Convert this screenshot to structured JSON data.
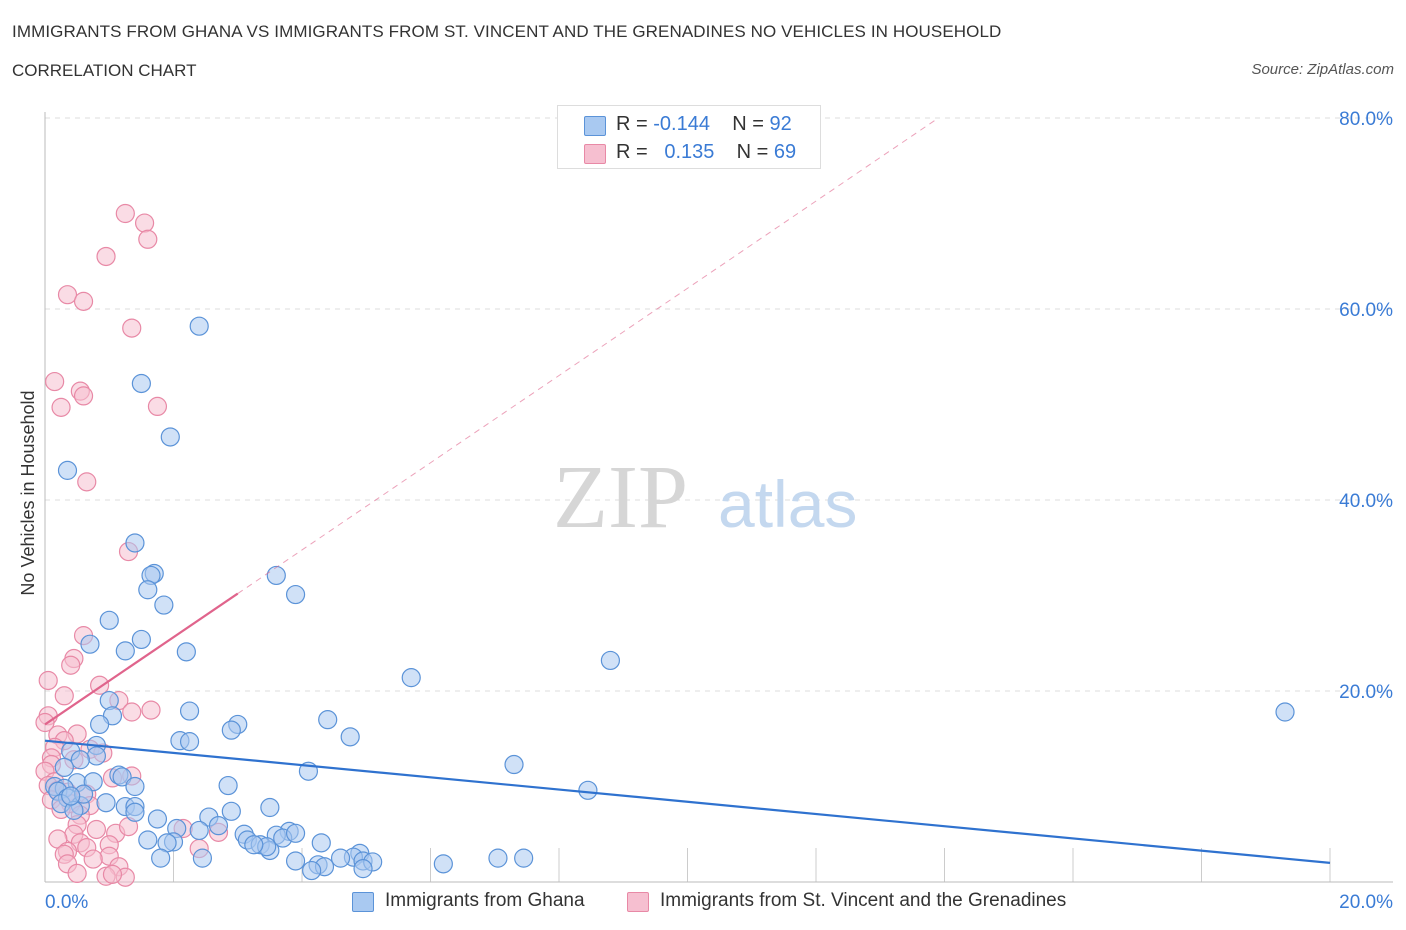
{
  "header": {
    "title": "IMMIGRANTS FROM GHANA VS IMMIGRANTS FROM ST. VINCENT AND THE GRENADINES NO VEHICLES IN HOUSEHOLD",
    "subtitle": "CORRELATION CHART",
    "source": "Source: ZipAtlas.com"
  },
  "legend": {
    "r_label": "R =",
    "n_label": "N =",
    "series1": {
      "r": "-0.144",
      "n": "92"
    },
    "series2": {
      "r": "0.135",
      "n": "69"
    }
  },
  "watermark": {
    "zip": "ZIP",
    "atlas": "atlas"
  },
  "colors": {
    "ghana_fill": "#a9c9f1",
    "ghana_stroke": "#5b93d8",
    "ghana_line": "#2f72cf",
    "svg_fill": "#f6bfd0",
    "svg_stroke": "#e889a6",
    "svg_line": "#e0648c",
    "tick_color": "#3a7bd5",
    "grid": "#dddddd"
  },
  "chart_data": {
    "type": "scatter",
    "title": "IMMIGRANTS FROM GHANA VS IMMIGRANTS FROM ST. VINCENT AND THE GRENADINES NO VEHICLES IN HOUSEHOLD",
    "xlabel": "",
    "ylabel": "No Vehicles in Household",
    "xlim": [
      0,
      20
    ],
    "ylim": [
      0,
      80
    ],
    "x_tick_labels": [
      "0.0%",
      "20.0%"
    ],
    "y_ticks": [
      20,
      40,
      60,
      80
    ],
    "y_tick_labels": [
      "20.0%",
      "40.0%",
      "60.0%",
      "80.0%"
    ],
    "grid": true,
    "legend_position": "top-center",
    "series": [
      {
        "name": "Immigrants from Ghana",
        "R": -0.144,
        "N": 92,
        "trend": {
          "x": [
            0,
            20
          ],
          "y": [
            14.8,
            2.0
          ]
        },
        "points": [
          [
            2.4,
            58.2
          ],
          [
            1.5,
            52.2
          ],
          [
            1.95,
            46.6
          ],
          [
            0.35,
            43.1
          ],
          [
            1.4,
            35.5
          ],
          [
            1.7,
            32.3
          ],
          [
            1.65,
            32.1
          ],
          [
            3.6,
            32.1
          ],
          [
            1.6,
            30.6
          ],
          [
            1.85,
            29.0
          ],
          [
            3.9,
            30.1
          ],
          [
            1.0,
            27.4
          ],
          [
            0.7,
            24.9
          ],
          [
            1.5,
            25.4
          ],
          [
            2.2,
            24.1
          ],
          [
            1.25,
            24.2
          ],
          [
            8.8,
            23.2
          ],
          [
            5.7,
            21.4
          ],
          [
            1.0,
            19.0
          ],
          [
            2.25,
            17.9
          ],
          [
            19.3,
            17.8
          ],
          [
            1.05,
            17.4
          ],
          [
            4.4,
            17.0
          ],
          [
            0.85,
            16.5
          ],
          [
            3.0,
            16.5
          ],
          [
            2.9,
            15.9
          ],
          [
            4.75,
            15.2
          ],
          [
            2.1,
            14.8
          ],
          [
            2.25,
            14.7
          ],
          [
            0.8,
            14.3
          ],
          [
            0.4,
            13.7
          ],
          [
            0.8,
            13.2
          ],
          [
            0.55,
            12.8
          ],
          [
            0.3,
            12.0
          ],
          [
            7.3,
            12.3
          ],
          [
            4.1,
            11.6
          ],
          [
            1.15,
            11.2
          ],
          [
            1.2,
            11.0
          ],
          [
            0.5,
            10.4
          ],
          [
            0.75,
            10.5
          ],
          [
            1.4,
            10.0
          ],
          [
            2.85,
            10.1
          ],
          [
            0.15,
            10.0
          ],
          [
            0.3,
            9.8
          ],
          [
            0.2,
            9.5
          ],
          [
            8.45,
            9.6
          ],
          [
            0.35,
            8.8
          ],
          [
            0.25,
            8.2
          ],
          [
            0.55,
            8.0
          ],
          [
            0.95,
            8.3
          ],
          [
            1.25,
            7.9
          ],
          [
            1.4,
            7.9
          ],
          [
            3.5,
            7.8
          ],
          [
            0.45,
            7.5
          ],
          [
            2.9,
            7.4
          ],
          [
            1.4,
            7.3
          ],
          [
            2.55,
            6.8
          ],
          [
            1.75,
            6.6
          ],
          [
            2.05,
            5.6
          ],
          [
            2.4,
            5.4
          ],
          [
            3.1,
            5.0
          ],
          [
            3.8,
            5.3
          ],
          [
            3.6,
            4.9
          ],
          [
            3.7,
            4.6
          ],
          [
            3.9,
            5.1
          ],
          [
            1.6,
            4.4
          ],
          [
            2.0,
            4.2
          ],
          [
            3.15,
            4.4
          ],
          [
            4.3,
            4.1
          ],
          [
            1.9,
            4.1
          ],
          [
            3.35,
            3.9
          ],
          [
            3.5,
            3.3
          ],
          [
            3.45,
            3.7
          ],
          [
            3.25,
            3.9
          ],
          [
            4.9,
            3.0
          ],
          [
            2.45,
            2.5
          ],
          [
            1.8,
            2.5
          ],
          [
            4.8,
            2.6
          ],
          [
            4.95,
            2.2
          ],
          [
            5.1,
            2.1
          ],
          [
            3.9,
            2.2
          ],
          [
            4.25,
            1.8
          ],
          [
            4.35,
            1.6
          ],
          [
            6.2,
            1.9
          ],
          [
            7.05,
            2.5
          ],
          [
            7.45,
            2.5
          ],
          [
            4.15,
            1.2
          ],
          [
            4.95,
            1.4
          ],
          [
            4.6,
            2.5
          ],
          [
            2.7,
            5.9
          ],
          [
            0.6,
            9.2
          ],
          [
            0.4,
            9.0
          ]
        ]
      },
      {
        "name": "Immigrants from St. Vincent and the Grenadines",
        "R": 0.135,
        "N": 69,
        "trend": {
          "x": [
            0,
            3.0
          ],
          "y": [
            16.5,
            30.2
          ]
        },
        "points": [
          [
            1.25,
            70.0
          ],
          [
            1.55,
            69.0
          ],
          [
            1.6,
            67.3
          ],
          [
            0.95,
            65.5
          ],
          [
            0.35,
            61.5
          ],
          [
            0.6,
            60.8
          ],
          [
            1.35,
            58.0
          ],
          [
            0.15,
            52.4
          ],
          [
            0.55,
            51.4
          ],
          [
            0.6,
            50.9
          ],
          [
            0.25,
            49.7
          ],
          [
            1.75,
            49.8
          ],
          [
            0.65,
            41.9
          ],
          [
            1.3,
            34.6
          ],
          [
            0.6,
            25.8
          ],
          [
            0.45,
            23.4
          ],
          [
            0.4,
            22.7
          ],
          [
            0.05,
            21.1
          ],
          [
            0.85,
            20.6
          ],
          [
            0.3,
            19.5
          ],
          [
            1.15,
            19.0
          ],
          [
            1.65,
            18.0
          ],
          [
            1.35,
            17.8
          ],
          [
            0.05,
            17.4
          ],
          [
            0.0,
            16.7
          ],
          [
            0.2,
            15.4
          ],
          [
            0.5,
            15.5
          ],
          [
            0.3,
            14.8
          ],
          [
            0.15,
            14.1
          ],
          [
            0.7,
            13.9
          ],
          [
            0.9,
            13.5
          ],
          [
            0.1,
            13.0
          ],
          [
            0.45,
            12.8
          ],
          [
            0.1,
            12.3
          ],
          [
            0.0,
            11.6
          ],
          [
            1.35,
            11.1
          ],
          [
            0.15,
            10.5
          ],
          [
            0.05,
            10.1
          ],
          [
            0.2,
            9.6
          ],
          [
            1.05,
            10.9
          ],
          [
            0.35,
            9.4
          ],
          [
            0.65,
            9.2
          ],
          [
            0.1,
            8.6
          ],
          [
            0.4,
            8.2
          ],
          [
            0.7,
            8.0
          ],
          [
            0.25,
            7.6
          ],
          [
            0.55,
            7.0
          ],
          [
            0.5,
            6.0
          ],
          [
            0.8,
            5.5
          ],
          [
            1.1,
            5.1
          ],
          [
            1.3,
            5.8
          ],
          [
            2.15,
            5.6
          ],
          [
            2.7,
            5.2
          ],
          [
            0.45,
            5.0
          ],
          [
            0.2,
            4.5
          ],
          [
            0.55,
            4.1
          ],
          [
            0.65,
            3.6
          ],
          [
            1.0,
            3.9
          ],
          [
            2.4,
            3.5
          ],
          [
            0.35,
            3.2
          ],
          [
            0.3,
            2.9
          ],
          [
            1.0,
            2.7
          ],
          [
            0.75,
            2.4
          ],
          [
            0.35,
            1.9
          ],
          [
            1.15,
            1.6
          ],
          [
            0.5,
            0.9
          ],
          [
            0.95,
            0.6
          ],
          [
            1.25,
            0.5
          ],
          [
            1.05,
            0.8
          ]
        ]
      }
    ]
  },
  "bottom_legend": {
    "item1": "Immigrants from Ghana",
    "item2": "Immigrants from St. Vincent and the Grenadines"
  }
}
